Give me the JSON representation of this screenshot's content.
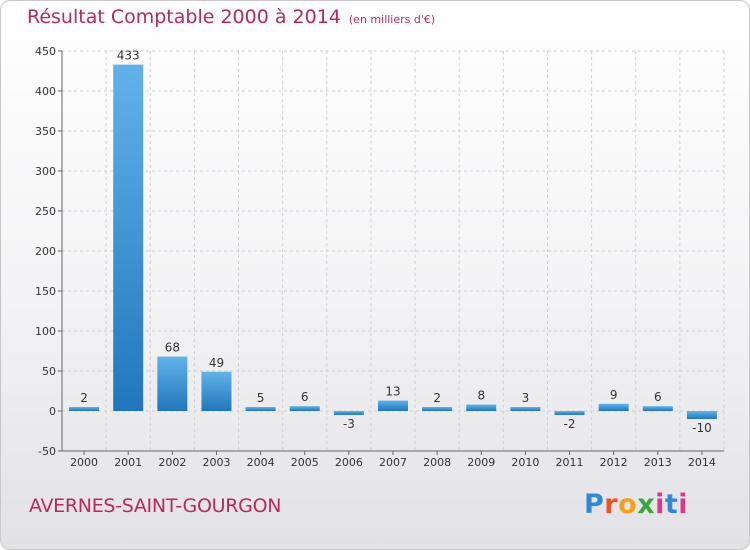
{
  "title": "Résultat Comptable 2000 à 2014",
  "unit": "(en milliers d'€)",
  "commune": "AVERNES-SAINT-GOURGON",
  "logo": {
    "letters": [
      "P",
      "r",
      "o",
      "x",
      "i",
      "t",
      "i"
    ]
  },
  "colors": {
    "title": "#b8285e",
    "bar_light": "#62b2ea",
    "bar_dark": "#2177bb",
    "grid": "#cfcfcf",
    "axis": "#666666"
  },
  "chart_data": {
    "type": "bar",
    "title": "Résultat Comptable 2000 à 2014",
    "ylabel": "en milliers d'€",
    "xlabel": "",
    "categories": [
      "2000",
      "2001",
      "2002",
      "2003",
      "2004",
      "2005",
      "2006",
      "2007",
      "2008",
      "2009",
      "2010",
      "2011",
      "2012",
      "2013",
      "2014"
    ],
    "values": [
      2,
      433,
      68,
      49,
      5,
      6,
      -3,
      13,
      2,
      8,
      3,
      -2,
      9,
      6,
      -10
    ],
    "ylim": [
      -50,
      450
    ],
    "yticks": [
      -50,
      0,
      50,
      100,
      150,
      200,
      250,
      300,
      350,
      400,
      450
    ],
    "grid": true,
    "legend": "none"
  }
}
